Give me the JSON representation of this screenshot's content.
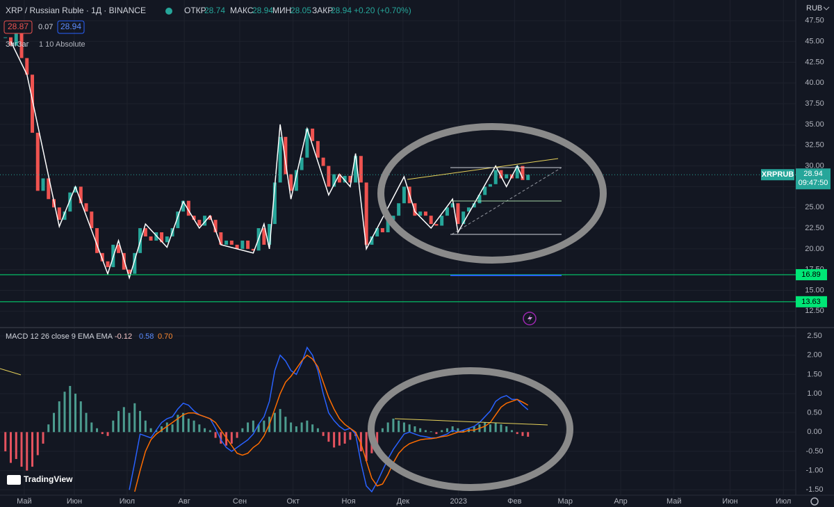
{
  "header": {
    "ohlc_labels": [
      "ОТКР",
      "МАКС",
      "МИН",
      "ЗАКР"
    ],
    "ohlc_values": [
      "28.74",
      "28.94",
      "28.05",
      "28.94"
    ],
    "change": "+0.20 (+0.70%)",
    "bid": "28.87",
    "spread": "0.07",
    "ask": "28.94",
    "currency": "RUB",
    "brand": "TradingView"
  },
  "chart_data": [
    {
      "type": "candlestick",
      "title": "XRP / Russian Ruble · 1Д · BINANCE",
      "up_color": "#26a69a",
      "down_color": "#ef5350",
      "grid": true,
      "close": [
        45.5,
        44.5,
        46,
        43,
        41,
        34,
        27,
        28.5,
        26,
        25,
        23.5,
        24.5,
        26.8,
        27.5,
        25.5,
        24.5,
        22.5,
        19.5,
        18.5,
        17.8,
        20.5,
        19.5,
        17.5,
        17,
        19.5,
        22.5,
        21.5,
        21,
        22,
        20.8,
        21.5,
        22.5,
        24.5,
        25.8,
        24,
        23.5,
        22.8,
        24,
        23.5,
        22,
        20.5,
        21,
        20.5,
        20,
        21,
        20,
        19.8,
        22.5,
        20.5,
        23,
        28,
        33.5,
        29,
        27,
        29.5,
        31,
        34.5,
        33,
        31,
        30,
        27.5,
        29,
        28,
        28.8,
        28,
        31.2,
        28,
        20.5,
        21.5,
        22.5,
        22,
        23.5,
        24,
        25.5,
        27.5,
        25.5,
        24,
        24.5,
        24,
        23,
        22.8,
        24,
        25,
        25.5,
        23,
        24.5,
        25,
        25.5,
        26.5,
        27.5,
        27.8,
        29.5,
        28.5,
        29,
        28.5,
        30,
        28.3,
        28.94
      ],
      "xlim": [
        -1,
        146.7
      ],
      "ylim": [
        10.6,
        50
      ],
      "yticks": [
        {
          "value": 12.5,
          "label": "12.50"
        },
        {
          "value": 15,
          "label": "15.00"
        },
        {
          "value": 17.5,
          "label": "17.50"
        },
        {
          "value": 20,
          "label": "20.00"
        },
        {
          "value": 22.5,
          "label": "22.50"
        },
        {
          "value": 25,
          "label": "25.00"
        },
        {
          "value": 27.5,
          "label": "27.50"
        },
        {
          "value": 30,
          "label": "30.00"
        },
        {
          "value": 32.5,
          "label": "32.50"
        },
        {
          "value": 35,
          "label": "35.00"
        },
        {
          "value": 37.5,
          "label": "37.50"
        },
        {
          "value": 40,
          "label": "40.00"
        },
        {
          "value": 42.5,
          "label": "42.50"
        },
        {
          "value": 45,
          "label": "45.00"
        },
        {
          "value": 47.5,
          "label": "47.50"
        }
      ],
      "zigzag": {
        "name": "ЗигЗаг",
        "params": "1 10 Absolute",
        "color": "#ffffff",
        "x": [
          1,
          4,
          10,
          13,
          19,
          21,
          23,
          26,
          30,
          33,
          36,
          38,
          40,
          46,
          48,
          49,
          51,
          53,
          56,
          60,
          62,
          64,
          65,
          67,
          74,
          76,
          79,
          83,
          84,
          91,
          93,
          95,
          96
        ],
        "values": [
          45,
          41,
          22.7,
          27.5,
          17,
          21,
          16.5,
          23,
          20.2,
          25.7,
          22.5,
          24,
          20.5,
          19.5,
          23,
          20,
          35,
          26,
          34.5,
          26.5,
          29,
          27.5,
          31.5,
          20,
          28.7,
          24.5,
          22.5,
          26,
          22,
          30,
          27.5,
          30,
          28.5
        ]
      },
      "hlines": [
        {
          "value": 16.89,
          "color": "#00e676"
        },
        {
          "value": 13.63,
          "color": "#00e676"
        }
      ],
      "last": {
        "ticker": "XRPRUB",
        "value": 28.94,
        "countdown": "09:47:50",
        "color": "#26a69a"
      }
    },
    {
      "type": "macd",
      "title": "MACD 12 26 close 9 EMA EMA",
      "legend_values": [
        "-0.12",
        "0.58",
        "0.70"
      ],
      "grid": true,
      "xlim": [
        -1,
        146.7
      ],
      "ylim": [
        -1.64,
        2.7
      ],
      "yticks": [
        {
          "value": 2.5,
          "label": "2.50"
        },
        {
          "value": 2,
          "label": "2.00"
        },
        {
          "value": 1.5,
          "label": "1.50"
        },
        {
          "value": 1,
          "label": "1.00"
        },
        {
          "value": 0.5,
          "label": "0.50"
        },
        {
          "value": 0,
          "label": "0.00"
        },
        {
          "value": -0.5,
          "label": "-0.50"
        },
        {
          "value": -1,
          "label": "-1.00"
        },
        {
          "value": -1.5,
          "label": "-1.50"
        }
      ],
      "xticks": [
        {
          "value": 3.5,
          "label": "Май"
        },
        {
          "value": 12.8,
          "label": "Июн"
        },
        {
          "value": 22.6,
          "label": "Июл"
        },
        {
          "value": 33.2,
          "label": "Авг"
        },
        {
          "value": 43.5,
          "label": "Сен"
        },
        {
          "value": 53.4,
          "label": "Окт"
        },
        {
          "value": 63.7,
          "label": "Ноя"
        },
        {
          "value": 73.8,
          "label": "Дек"
        },
        {
          "value": 84.1,
          "label": "2023"
        },
        {
          "value": 94.5,
          "label": "Фев"
        },
        {
          "value": 103.9,
          "label": "Мар"
        },
        {
          "value": 114.2,
          "label": "Апр"
        },
        {
          "value": 124.1,
          "label": "Май"
        },
        {
          "value": 134.5,
          "label": "Июн"
        },
        {
          "value": 144.4,
          "label": "Июл"
        }
      ],
      "histogram": {
        "up_color": "#4c9c8f",
        "down_color": "#e5535f",
        "values": [
          -0.5,
          -0.8,
          -0.7,
          -0.9,
          -1.0,
          -0.9,
          -0.6,
          -0.3,
          0.2,
          0.5,
          0.8,
          1.05,
          1.2,
          1.0,
          0.8,
          0.5,
          0.25,
          0.1,
          -0.05,
          -0.1,
          0.3,
          0.55,
          0.65,
          0.5,
          0.75,
          0.55,
          0.3,
          0.1,
          0.05,
          0.15,
          0.25,
          0.2,
          0.45,
          0.5,
          0.35,
          0.3,
          0.2,
          0.1,
          0.05,
          -0.15,
          -0.3,
          -0.35,
          -0.3,
          -0.15,
          0.1,
          0.25,
          0.3,
          0.2,
          0.3,
          0.4,
          0.5,
          0.6,
          0.4,
          0.25,
          0.15,
          0.25,
          0.3,
          0.2,
          0.1,
          -0.1,
          -0.25,
          -0.4,
          -0.35,
          -0.3,
          -0.2,
          -0.1,
          -0.5,
          -0.75,
          -0.55,
          -0.3,
          0.1,
          0.25,
          0.35,
          0.3,
          0.25,
          0.2,
          0.15,
          0.1,
          0.05,
          0.02,
          -0.05,
          0.05,
          0.1,
          0.15,
          0.1,
          0.05,
          0.1,
          0.15,
          0.2,
          0.25,
          0.2,
          0.25,
          0.2,
          0.15,
          0.05,
          -0.05,
          -0.1,
          -0.12
        ]
      },
      "macd": {
        "color": "#2962ff",
        "values": [
          null,
          null,
          null,
          null,
          null,
          null,
          null,
          null,
          null,
          null,
          null,
          null,
          null,
          null,
          null,
          null,
          null,
          null,
          null,
          null,
          null,
          null,
          null,
          -1.5,
          -0.8,
          -0.05,
          -0.1,
          -0.15,
          0.05,
          0.25,
          0.35,
          0.4,
          0.6,
          0.75,
          0.7,
          0.55,
          0.45,
          0.4,
          0.35,
          0.1,
          -0.2,
          -0.4,
          -0.5,
          -0.4,
          -0.3,
          -0.2,
          -0.05,
          0.2,
          0.4,
          0.8,
          1.6,
          2.0,
          1.85,
          1.6,
          1.5,
          1.8,
          2.2,
          2.0,
          1.6,
          1.0,
          0.5,
          0.3,
          0.15,
          0.05,
          0.1,
          -0.05,
          -0.8,
          -1.4,
          -1.55,
          -1.3,
          -1.0,
          -0.7,
          -0.45,
          -0.25,
          -0.05,
          0.0,
          -0.05,
          -0.1,
          -0.12,
          -0.15,
          -0.15,
          -0.1,
          -0.05,
          0.05,
          0.0,
          0.05,
          0.1,
          0.15,
          0.25,
          0.4,
          0.55,
          0.8,
          0.9,
          0.95,
          0.85,
          0.85,
          0.7,
          0.58
        ]
      },
      "signal": {
        "color": "#ff6d00",
        "values": [
          null,
          null,
          null,
          null,
          null,
          null,
          null,
          null,
          null,
          null,
          null,
          null,
          null,
          null,
          null,
          null,
          null,
          null,
          null,
          null,
          null,
          null,
          null,
          null,
          -1.55,
          -1.0,
          -0.5,
          -0.2,
          -0.05,
          0.05,
          0.15,
          0.25,
          0.35,
          0.45,
          0.5,
          0.5,
          0.45,
          0.4,
          0.35,
          0.25,
          0.05,
          -0.15,
          -0.35,
          -0.55,
          -0.6,
          -0.55,
          -0.4,
          -0.3,
          -0.1,
          0.2,
          0.6,
          1.0,
          1.3,
          1.45,
          1.65,
          1.85,
          2.0,
          1.9,
          1.7,
          1.3,
          0.9,
          0.6,
          0.35,
          0.2,
          0.1,
          0.0,
          -0.3,
          -0.75,
          -1.2,
          -1.4,
          -1.35,
          -1.1,
          -0.8,
          -0.55,
          -0.4,
          -0.3,
          -0.25,
          -0.2,
          -0.18,
          -0.17,
          -0.15,
          -0.12,
          -0.1,
          -0.05,
          0.0,
          0.0,
          0.05,
          0.05,
          0.1,
          0.15,
          0.25,
          0.45,
          0.65,
          0.75,
          0.8,
          0.85,
          0.78,
          0.7
        ]
      }
    }
  ]
}
